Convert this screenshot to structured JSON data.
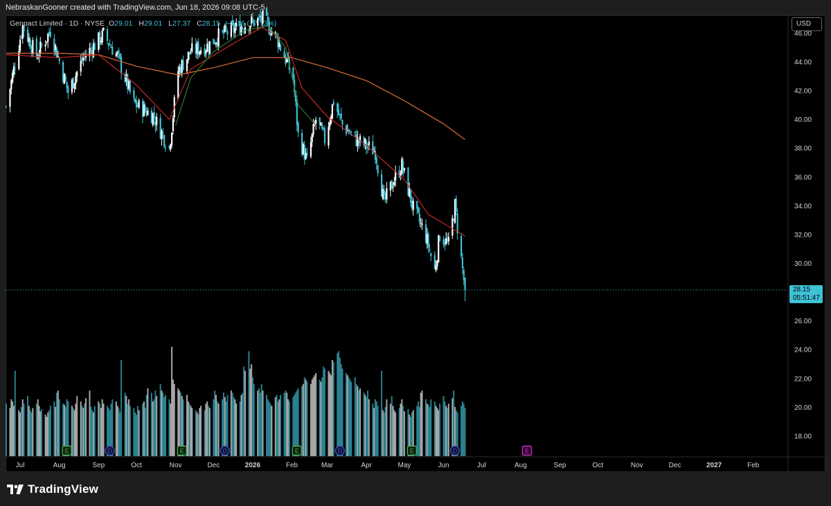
{
  "header": {
    "credit": "NebraskanGooner created with TradingView.com, Jun 18, 2026 09:08 UTC-5"
  },
  "legend": {
    "symbol": "Genpact Limited · 1D · NYSE",
    "open_label": "O",
    "open": "29.01",
    "high_label": "H",
    "high": "29.01",
    "low_label": "L",
    "low": "27.37",
    "close_label": "C",
    "close": "28.15",
    "change": "−2.16 (−7.13%)"
  },
  "currency_button": "USD",
  "last_price": {
    "price": "28.15",
    "countdown": "05:51:47"
  },
  "brand": {
    "name": "TradingView"
  },
  "colors": {
    "background": "#000000",
    "candle_up": "#ffffff",
    "candle_down": "#3fc1d6",
    "ma_short": "#2e7d32",
    "ma_mid": "#c62828",
    "ma_long": "#e0703a",
    "earnings_marker": "#4caf50",
    "dividend_marker": "#3f51b5",
    "future_earnings_marker": "#d62ad6"
  },
  "chart_data": {
    "type": "candlestick",
    "title": "Genpact Limited · 1D · NYSE",
    "ylim": [
      16.6,
      47.2
    ],
    "y_ticks": [
      "46.00",
      "44.00",
      "42.00",
      "40.00",
      "38.00",
      "36.00",
      "34.00",
      "32.00",
      "30.00",
      "28.00",
      "26.00",
      "24.00",
      "22.00",
      "20.00",
      "18.00"
    ],
    "x_ticks": [
      "Jul",
      "Aug",
      "Sep",
      "Oct",
      "Nov",
      "Dec",
      "2026",
      "Feb",
      "Mar",
      "Apr",
      "May",
      "Jun",
      "Jul",
      "Aug",
      "Sep",
      "Oct",
      "Nov",
      "Dec",
      "2027",
      "Feb"
    ],
    "x_tick_dates": [
      "2025-07-01",
      "2025-08-01",
      "2025-09-01",
      "2025-10-01",
      "2025-11-01",
      "2025-12-01",
      "2026-01-01",
      "2026-02-01",
      "2026-03-01",
      "2026-04-01",
      "2026-05-01",
      "2026-06-01",
      "2026-07-01",
      "2026-08-01",
      "2026-09-01",
      "2026-10-01",
      "2026-11-01",
      "2026-12-01",
      "2027-01-01",
      "2027-02-01"
    ],
    "x_range": [
      "2025-06-20",
      "2027-02-28"
    ],
    "close_path": [
      [
        "2025-06-20",
        40.9
      ],
      [
        "2025-07-03",
        46.5
      ],
      [
        "2025-07-14",
        44.4
      ],
      [
        "2025-07-25",
        46.2
      ],
      [
        "2025-08-08",
        41.9
      ],
      [
        "2025-08-20",
        44.3
      ],
      [
        "2025-09-05",
        45.9
      ],
      [
        "2025-09-16",
        44.4
      ],
      [
        "2025-09-29",
        41.1
      ],
      [
        "2025-10-14",
        40.3
      ],
      [
        "2025-10-27",
        38.0
      ],
      [
        "2025-11-03",
        43.4
      ],
      [
        "2025-11-13",
        44.7
      ],
      [
        "2025-11-26",
        45.1
      ],
      [
        "2025-12-05",
        45.8
      ],
      [
        "2025-12-26",
        46.6
      ],
      [
        "2026-01-09",
        47.0
      ],
      [
        "2026-01-20",
        45.7
      ],
      [
        "2026-02-02",
        42.9
      ],
      [
        "2026-02-06",
        38.9
      ],
      [
        "2026-02-13",
        37.1
      ],
      [
        "2026-02-20",
        40.0
      ],
      [
        "2026-02-27",
        38.6
      ],
      [
        "2026-03-06",
        41.3
      ],
      [
        "2026-03-13",
        39.6
      ],
      [
        "2026-03-25",
        38.5
      ],
      [
        "2026-04-08",
        37.8
      ],
      [
        "2026-04-15",
        34.2
      ],
      [
        "2026-04-22",
        35.7
      ],
      [
        "2026-04-29",
        36.8
      ],
      [
        "2026-05-08",
        33.8
      ],
      [
        "2026-05-18",
        31.9
      ],
      [
        "2026-05-25",
        29.5
      ],
      [
        "2026-05-29",
        32.0
      ],
      [
        "2026-06-05",
        31.3
      ],
      [
        "2026-06-10",
        34.0
      ],
      [
        "2026-06-15",
        30.3
      ],
      [
        "2026-06-18",
        28.15
      ]
    ],
    "last": {
      "date": "2026-06-18",
      "open": 29.01,
      "high": 29.01,
      "low": 27.37,
      "close": 28.15,
      "change": -2.16,
      "change_pct": -7.13
    },
    "series": [
      {
        "kind": "moving_average",
        "color": "#e0703a",
        "points": [
          [
            "2025-06-20",
            44.6
          ],
          [
            "2025-08-01",
            44.6
          ],
          [
            "2025-09-01",
            44.5
          ],
          [
            "2025-10-01",
            43.7
          ],
          [
            "2025-11-03",
            43.1
          ],
          [
            "2025-12-01",
            43.6
          ],
          [
            "2026-01-01",
            44.3
          ],
          [
            "2026-02-01",
            44.3
          ],
          [
            "2026-03-01",
            43.6
          ],
          [
            "2026-04-01",
            42.7
          ],
          [
            "2026-05-01",
            41.3
          ],
          [
            "2026-06-01",
            39.7
          ],
          [
            "2026-06-18",
            38.6
          ]
        ]
      },
      {
        "kind": "moving_average",
        "color": "#c62828",
        "points": [
          [
            "2025-06-20",
            44.5
          ],
          [
            "2025-08-01",
            44.3
          ],
          [
            "2025-09-01",
            44.5
          ],
          [
            "2025-10-01",
            42.4
          ],
          [
            "2025-10-27",
            40.0
          ],
          [
            "2025-11-13",
            43.5
          ],
          [
            "2025-12-15",
            45.2
          ],
          [
            "2026-01-08",
            46.4
          ],
          [
            "2026-01-27",
            45.5
          ],
          [
            "2026-02-09",
            42.2
          ],
          [
            "2026-03-01",
            40.2
          ],
          [
            "2026-04-01",
            38.2
          ],
          [
            "2026-05-01",
            35.8
          ],
          [
            "2026-05-20",
            33.4
          ],
          [
            "2026-06-18",
            31.9
          ]
        ]
      },
      {
        "kind": "moving_average",
        "color": "#2e7d32",
        "points": [
          [
            "2025-11-01",
            39.6
          ],
          [
            "2025-11-13",
            42.9
          ],
          [
            "2025-12-01",
            44.7
          ],
          [
            "2025-12-26",
            46.2
          ],
          [
            "2026-01-13",
            46.5
          ],
          [
            "2026-01-27",
            45.0
          ],
          [
            "2026-02-06",
            41.0
          ],
          [
            "2026-02-20",
            39.6
          ]
        ]
      }
    ],
    "volume": {
      "note": "relative bar heights",
      "values": [
        0.48,
        0.44,
        0.52,
        0.5,
        0.46,
        0.78,
        0.42,
        0.4,
        0.45,
        0.52,
        0.48,
        0.55,
        0.46,
        0.42,
        0.4,
        0.44,
        0.48,
        0.52,
        0.46,
        0.41,
        0.43,
        0.38,
        0.36,
        0.4,
        0.42,
        0.46,
        0.5,
        0.45,
        0.58,
        0.6,
        0.52,
        0.48,
        0.47,
        0.45,
        0.52,
        0.5,
        0.46,
        0.44,
        0.42,
        0.48,
        0.55,
        0.5,
        0.46,
        0.44,
        0.48,
        0.53,
        0.6,
        0.45,
        0.42,
        0.4,
        0.46,
        0.5,
        0.48,
        0.44,
        0.52,
        0.48,
        0.46,
        0.44,
        0.42,
        0.48,
        0.52,
        0.5,
        0.46,
        0.44,
        0.4,
        0.88,
        0.58,
        0.55,
        0.48,
        0.52,
        0.46,
        0.44,
        0.4,
        0.38,
        0.46,
        0.42,
        0.48,
        0.5,
        0.44,
        0.56,
        0.62,
        0.58,
        0.5,
        0.52,
        0.6,
        0.55,
        0.66,
        0.6,
        0.58,
        0.54,
        0.56,
        0.52,
        0.48,
        1.0,
        0.7,
        0.66,
        0.62,
        0.6,
        0.58,
        0.55,
        0.52,
        0.56,
        0.5,
        0.48,
        0.46,
        0.44,
        0.42,
        0.4,
        0.38,
        0.44,
        0.46,
        0.42,
        0.48,
        0.5,
        0.46,
        0.44,
        0.52,
        0.6,
        0.56,
        0.5,
        0.48,
        0.52,
        0.58,
        0.54,
        0.5,
        0.56,
        0.6,
        0.58,
        0.54,
        0.52,
        0.48,
        0.5,
        0.56,
        0.58,
        0.82,
        0.78,
        0.96,
        0.8,
        0.84,
        0.72,
        0.66,
        0.6,
        0.62,
        0.58,
        0.66,
        0.6,
        0.56,
        0.52,
        0.5,
        0.48,
        0.46,
        0.54,
        0.56,
        0.5,
        0.52,
        0.56,
        0.58,
        0.6,
        0.58,
        0.52,
        0.5,
        0.54,
        0.56,
        0.58,
        0.6,
        0.62,
        0.64,
        0.66,
        0.72,
        0.7,
        0.68,
        0.66,
        0.7,
        0.72,
        0.74,
        0.76,
        0.7,
        0.68,
        0.72,
        0.82,
        0.8,
        0.78,
        0.76,
        0.74,
        0.88,
        0.86,
        0.94,
        0.96,
        0.9,
        0.84,
        0.8,
        0.76,
        0.74,
        0.72,
        0.7,
        0.68,
        0.72,
        0.66,
        0.64,
        0.6,
        0.62,
        0.58,
        0.56,
        0.54,
        0.6,
        0.52
      ]
    }
  },
  "events": [
    {
      "type": "earnings",
      "letter": "E",
      "date": "2025-08-07"
    },
    {
      "type": "dividend",
      "letter": "D",
      "date": "2025-09-10"
    },
    {
      "type": "earnings",
      "letter": "E",
      "date": "2025-11-06"
    },
    {
      "type": "dividend",
      "letter": "D",
      "date": "2025-12-10"
    },
    {
      "type": "earnings",
      "letter": "E",
      "date": "2026-02-05"
    },
    {
      "type": "dividend",
      "letter": "D",
      "date": "2026-03-11"
    },
    {
      "type": "earnings",
      "letter": "E",
      "date": "2026-05-07"
    },
    {
      "type": "dividend",
      "letter": "D",
      "date": "2026-06-10"
    },
    {
      "type": "future-earnings",
      "letter": "E",
      "date": "2026-08-06"
    }
  ]
}
